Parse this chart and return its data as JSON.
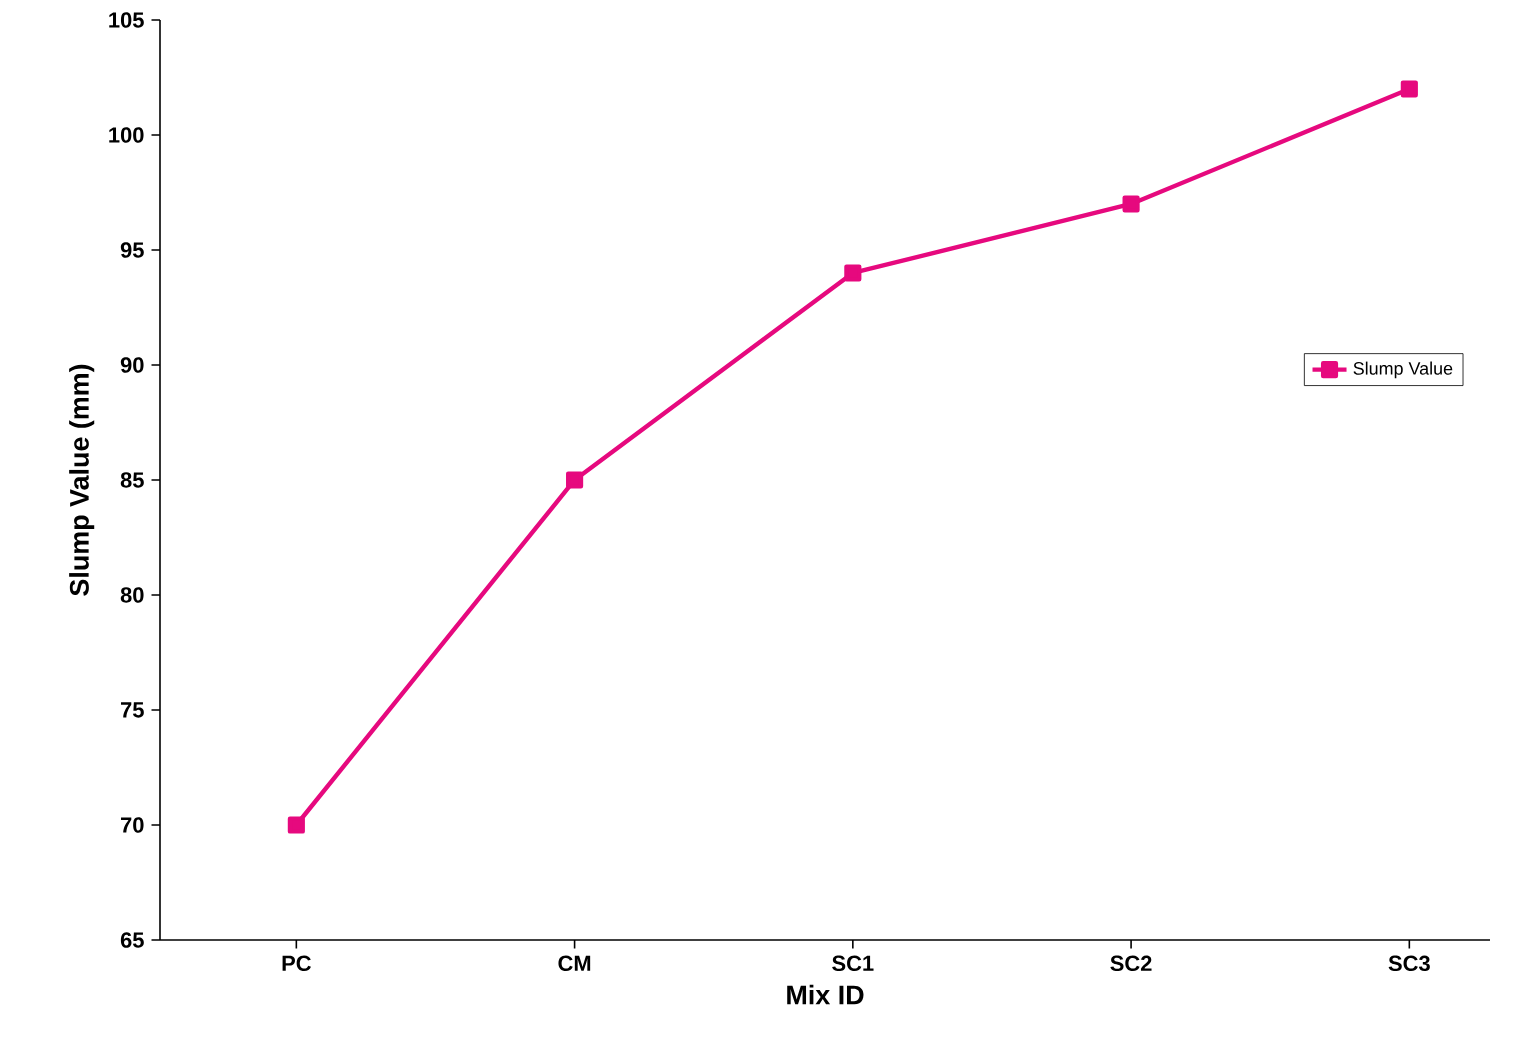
{
  "chart_data": {
    "type": "line",
    "xlabel": "Mix ID",
    "ylabel": "Slump Value (mm)",
    "categories": [
      "PC",
      "CM",
      "SC1",
      "SC2",
      "SC3"
    ],
    "series": [
      {
        "name": "Slump Value",
        "color": "#e6097e",
        "values": [
          70,
          85,
          94,
          97,
          102
        ]
      }
    ],
    "ylim": [
      65,
      105
    ],
    "yticks": [
      65,
      70,
      75,
      80,
      85,
      90,
      95,
      100,
      105
    ],
    "grid": false,
    "legend": "right",
    "marker": "square",
    "line_style": "solid"
  }
}
